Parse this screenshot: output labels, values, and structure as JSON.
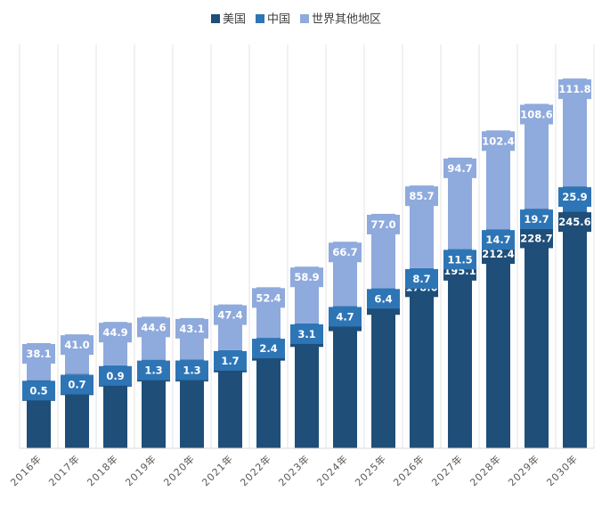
{
  "chart_data": {
    "type": "bar",
    "stacked": true,
    "categories": [
      "2016年",
      "2017年",
      "2018年",
      "2019年",
      "2020年",
      "2021年",
      "2022年",
      "2023年",
      "2024年",
      "2025年",
      "2026年",
      "2027年",
      "2028年",
      "2029年",
      "2030年"
    ],
    "series": [
      {
        "name": "美国",
        "color": "#1f4e79",
        "values": [
          70.4,
          76.4,
          85.2,
          90.5,
          90.6,
          100.0,
          112.1,
          126.3,
          142.7,
          159.6,
          178.0,
          195.1,
          212.4,
          228.7,
          245.6
        ]
      },
      {
        "name": "中国",
        "color": "#2e75b6",
        "values": [
          0.5,
          0.7,
          0.9,
          1.3,
          1.3,
          1.7,
          2.4,
          3.1,
          4.7,
          6.4,
          8.7,
          11.5,
          14.7,
          19.7,
          25.9
        ]
      },
      {
        "name": "世界其他地区",
        "color": "#8faadc",
        "values": [
          38.1,
          41.0,
          44.9,
          44.6,
          43.1,
          47.4,
          52.4,
          58.9,
          66.7,
          77.0,
          85.7,
          94.7,
          102.4,
          108.6,
          111.8
        ]
      }
    ],
    "data_labels": true,
    "legend_position": "top",
    "grid": "vertical",
    "ylim": [
      0,
      400
    ]
  }
}
